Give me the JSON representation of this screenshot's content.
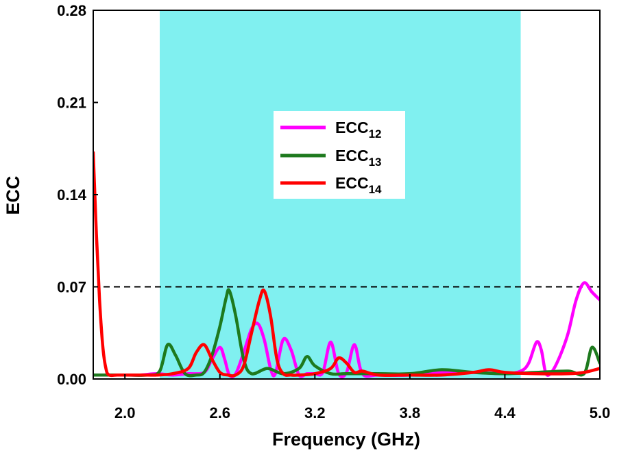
{
  "chart_data": {
    "type": "line",
    "title": "",
    "xlabel": "Frequency (GHz)",
    "ylabel": "ECC",
    "xlim": [
      1.8,
      5.0
    ],
    "ylim": [
      0.0,
      0.28
    ],
    "xticks": [
      2.0,
      2.6,
      3.2,
      3.8,
      4.4,
      5.0
    ],
    "xtick_labels": [
      "2.0",
      "2.6",
      "3.2",
      "3.8",
      "4.4",
      "5.0"
    ],
    "yticks": [
      0.0,
      0.07,
      0.14,
      0.21,
      0.28
    ],
    "ytick_labels": [
      "0.00",
      "0.07",
      "0.14",
      "0.21",
      "0.28"
    ],
    "grid": false,
    "shaded_band": {
      "x_start": 2.22,
      "x_end": 4.5,
      "color": "#80F0F0"
    },
    "threshold_line": {
      "y": 0.07,
      "style": "dashed",
      "color": "#000000"
    },
    "legend": {
      "position": "center",
      "entries": [
        {
          "main": "ECC",
          "sub": "12",
          "color": "#FF00FF"
        },
        {
          "main": "ECC",
          "sub": "13",
          "color": "#1E7A1E"
        },
        {
          "main": "ECC",
          "sub": "14",
          "color": "#FF0000"
        }
      ]
    },
    "series": [
      {
        "name": "ECC12",
        "color": "#FF00FF",
        "x": [
          1.8,
          1.9,
          2.0,
          2.1,
          2.2,
          2.3,
          2.4,
          2.5,
          2.55,
          2.6,
          2.63,
          2.66,
          2.7,
          2.75,
          2.8,
          2.84,
          2.88,
          2.92,
          2.95,
          3.0,
          3.05,
          3.1,
          3.15,
          3.2,
          3.25,
          3.3,
          3.35,
          3.4,
          3.45,
          3.5,
          3.6,
          3.8,
          4.0,
          4.2,
          4.4,
          4.5,
          4.55,
          4.6,
          4.63,
          4.66,
          4.7,
          4.75,
          4.8,
          4.85,
          4.9,
          4.95,
          5.0
        ],
        "y": [
          0.003,
          0.003,
          0.003,
          0.003,
          0.004,
          0.003,
          0.004,
          0.005,
          0.015,
          0.024,
          0.015,
          0.003,
          0.004,
          0.02,
          0.038,
          0.042,
          0.03,
          0.008,
          0.004,
          0.03,
          0.022,
          0.003,
          0.004,
          0.004,
          0.005,
          0.028,
          0.004,
          0.005,
          0.026,
          0.004,
          0.003,
          0.003,
          0.005,
          0.005,
          0.004,
          0.006,
          0.012,
          0.028,
          0.022,
          0.004,
          0.006,
          0.018,
          0.035,
          0.06,
          0.073,
          0.066,
          0.06
        ]
      },
      {
        "name": "ECC13",
        "color": "#1E7A1E",
        "x": [
          1.8,
          2.0,
          2.15,
          2.22,
          2.27,
          2.32,
          2.38,
          2.45,
          2.5,
          2.55,
          2.6,
          2.64,
          2.66,
          2.7,
          2.75,
          2.8,
          2.9,
          3.0,
          3.1,
          3.15,
          3.2,
          3.3,
          3.4,
          3.6,
          3.8,
          4.0,
          4.2,
          4.4,
          4.6,
          4.8,
          4.9,
          4.95,
          5.0
        ],
        "y": [
          0.003,
          0.003,
          0.003,
          0.006,
          0.026,
          0.018,
          0.004,
          0.003,
          0.005,
          0.018,
          0.04,
          0.062,
          0.067,
          0.048,
          0.015,
          0.004,
          0.008,
          0.004,
          0.008,
          0.017,
          0.01,
          0.004,
          0.004,
          0.004,
          0.004,
          0.007,
          0.005,
          0.004,
          0.005,
          0.006,
          0.004,
          0.024,
          0.012
        ]
      },
      {
        "name": "ECC14",
        "color": "#FF0000",
        "x": [
          1.8,
          1.82,
          1.84,
          1.86,
          1.88,
          1.9,
          1.95,
          2.0,
          2.1,
          2.2,
          2.3,
          2.4,
          2.45,
          2.5,
          2.55,
          2.6,
          2.65,
          2.7,
          2.75,
          2.8,
          2.85,
          2.88,
          2.92,
          2.96,
          3.0,
          3.05,
          3.1,
          3.2,
          3.3,
          3.35,
          3.4,
          3.45,
          3.5,
          3.6,
          3.8,
          4.0,
          4.2,
          4.3,
          4.4,
          4.6,
          4.8,
          4.9,
          5.0
        ],
        "y": [
          0.172,
          0.11,
          0.06,
          0.025,
          0.008,
          0.003,
          0.003,
          0.003,
          0.003,
          0.003,
          0.004,
          0.008,
          0.02,
          0.026,
          0.015,
          0.005,
          0.003,
          0.003,
          0.01,
          0.035,
          0.06,
          0.067,
          0.048,
          0.015,
          0.004,
          0.003,
          0.003,
          0.004,
          0.008,
          0.016,
          0.012,
          0.005,
          0.006,
          0.003,
          0.003,
          0.003,
          0.005,
          0.007,
          0.005,
          0.004,
          0.004,
          0.005,
          0.008
        ]
      }
    ]
  }
}
